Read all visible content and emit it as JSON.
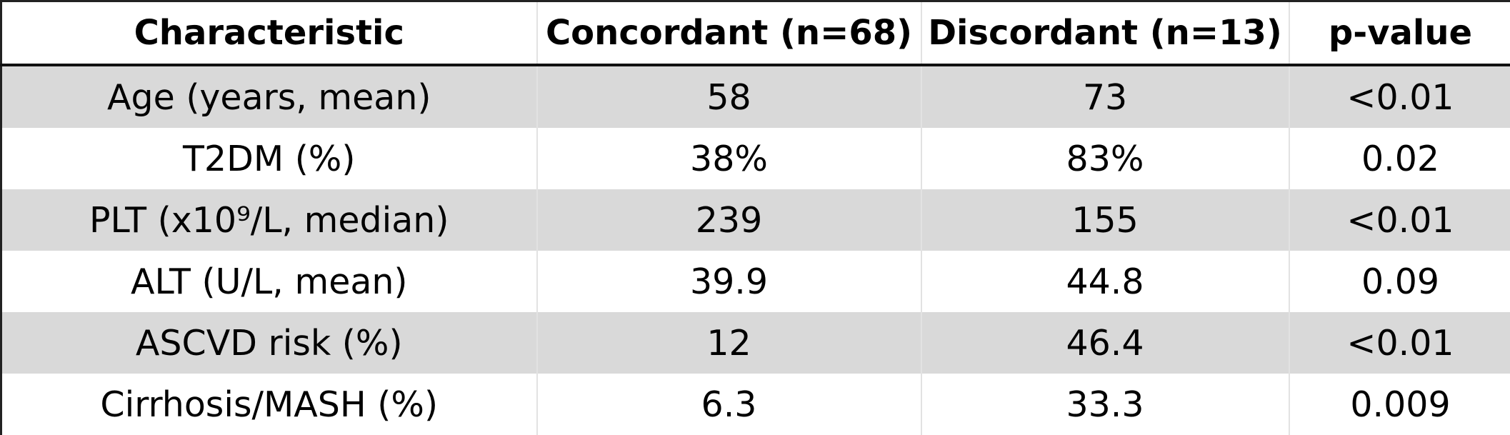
{
  "table": {
    "header": [
      "Characteristic",
      "Concordant (n=68)",
      "Discordant (n=13)",
      "p-value"
    ],
    "rows": [
      [
        "Age (years, mean)",
        "58",
        "73",
        "<0.01"
      ],
      [
        "T2DM (%)",
        "38%",
        "83%",
        "0.02"
      ],
      [
        "PLT (x10⁹/L, median)",
        "239",
        "155",
        "<0.01"
      ],
      [
        "ALT (U/L, mean)",
        "39.9",
        "44.8",
        "0.09"
      ],
      [
        "ASCVD risk (%)",
        "12",
        "46.4",
        "<0.01"
      ],
      [
        "Cirrhosis/MASH (%)",
        "6.3",
        "33.3",
        "0.009"
      ]
    ]
  }
}
